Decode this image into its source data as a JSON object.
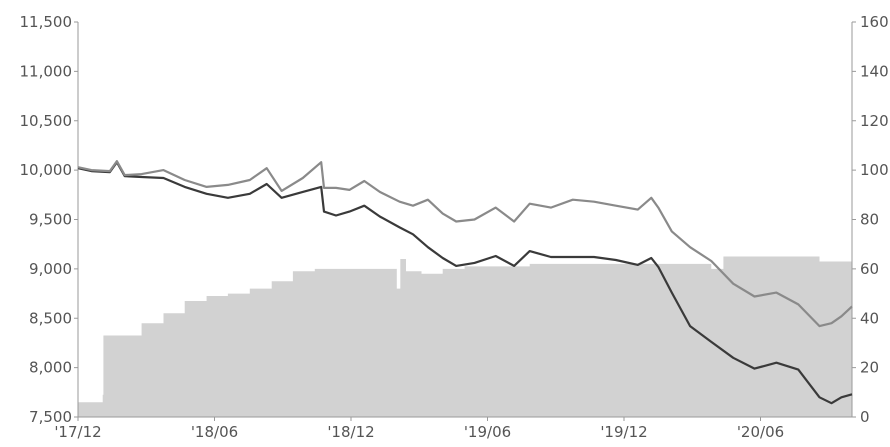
{
  "chart_data": {
    "type": "line",
    "x_tick_labels": [
      "'17/12",
      "'18/06",
      "'18/12",
      "'19/06",
      "'19/12",
      "'20/06"
    ],
    "y_left_tick_labels": [
      "11,500",
      "11,000",
      "10,500",
      "10,000",
      "9,500",
      "9,000",
      "8,500",
      "8,000",
      "7,500"
    ],
    "y_right_tick_labels": [
      "160",
      "140",
      "120",
      "100",
      "80",
      "60",
      "40",
      "20",
      "0"
    ],
    "y_left_range": [
      7500,
      11500
    ],
    "y_right_range": [
      0,
      160
    ],
    "x_range": [
      "2017-12-01",
      "2020-11-30"
    ],
    "grid": false,
    "colors": {
      "dark_line": "#3a3a3a",
      "light_line": "#8a8a8a",
      "area": "#d2d2d2",
      "axis": "#9a9a9a"
    },
    "series": [
      {
        "axis": "left",
        "style": "dark-line",
        "points": [
          [
            "2017-12-01",
            10020
          ],
          [
            "2017-12-20",
            9990
          ],
          [
            "2018-01-15",
            9980
          ],
          [
            "2018-01-25",
            10080
          ],
          [
            "2018-02-05",
            9940
          ],
          [
            "2018-03-01",
            9930
          ],
          [
            "2018-04-01",
            9920
          ],
          [
            "2018-05-01",
            9830
          ],
          [
            "2018-06-01",
            9760
          ],
          [
            "2018-07-01",
            9720
          ],
          [
            "2018-08-01",
            9760
          ],
          [
            "2018-08-25",
            9860
          ],
          [
            "2018-09-15",
            9720
          ],
          [
            "2018-10-15",
            9780
          ],
          [
            "2018-11-10",
            9830
          ],
          [
            "2018-11-14",
            9580
          ],
          [
            "2018-12-01",
            9540
          ],
          [
            "2018-12-20",
            9580
          ],
          [
            "2019-01-10",
            9640
          ],
          [
            "2019-02-01",
            9530
          ],
          [
            "2019-03-01",
            9420
          ],
          [
            "2019-03-20",
            9350
          ],
          [
            "2019-04-10",
            9220
          ],
          [
            "2019-05-01",
            9110
          ],
          [
            "2019-05-20",
            9030
          ],
          [
            "2019-06-15",
            9060
          ],
          [
            "2019-07-15",
            9130
          ],
          [
            "2019-08-10",
            9030
          ],
          [
            "2019-09-01",
            9180
          ],
          [
            "2019-10-01",
            9120
          ],
          [
            "2019-11-01",
            9120
          ],
          [
            "2019-12-01",
            9120
          ],
          [
            "2020-01-01",
            9090
          ],
          [
            "2020-02-01",
            9040
          ],
          [
            "2020-02-20",
            9110
          ],
          [
            "2020-03-01",
            9020
          ],
          [
            "2020-03-20",
            8760
          ],
          [
            "2020-04-15",
            8420
          ],
          [
            "2020-05-15",
            8260
          ],
          [
            "2020-06-15",
            8100
          ],
          [
            "2020-07-15",
            7990
          ],
          [
            "2020-08-15",
            8050
          ],
          [
            "2020-09-15",
            7980
          ],
          [
            "2020-10-15",
            7700
          ],
          [
            "2020-11-01",
            7640
          ],
          [
            "2020-11-15",
            7700
          ],
          [
            "2020-11-30",
            7730
          ]
        ]
      },
      {
        "axis": "left",
        "style": "light-line",
        "points": [
          [
            "2017-12-01",
            10030
          ],
          [
            "2017-12-20",
            10000
          ],
          [
            "2018-01-15",
            9990
          ],
          [
            "2018-01-25",
            10090
          ],
          [
            "2018-02-05",
            9950
          ],
          [
            "2018-03-01",
            9960
          ],
          [
            "2018-04-01",
            10000
          ],
          [
            "2018-05-01",
            9900
          ],
          [
            "2018-06-01",
            9830
          ],
          [
            "2018-07-01",
            9850
          ],
          [
            "2018-08-01",
            9900
          ],
          [
            "2018-08-25",
            10020
          ],
          [
            "2018-09-15",
            9790
          ],
          [
            "2018-10-15",
            9920
          ],
          [
            "2018-11-10",
            10080
          ],
          [
            "2018-11-14",
            9820
          ],
          [
            "2018-12-01",
            9820
          ],
          [
            "2018-12-20",
            9800
          ],
          [
            "2019-01-10",
            9890
          ],
          [
            "2019-02-01",
            9780
          ],
          [
            "2019-03-01",
            9680
          ],
          [
            "2019-03-20",
            9640
          ],
          [
            "2019-04-10",
            9700
          ],
          [
            "2019-05-01",
            9560
          ],
          [
            "2019-05-20",
            9480
          ],
          [
            "2019-06-15",
            9500
          ],
          [
            "2019-07-15",
            9620
          ],
          [
            "2019-08-10",
            9480
          ],
          [
            "2019-09-01",
            9660
          ],
          [
            "2019-10-01",
            9620
          ],
          [
            "2019-11-01",
            9700
          ],
          [
            "2019-12-01",
            9680
          ],
          [
            "2020-01-01",
            9640
          ],
          [
            "2020-02-01",
            9600
          ],
          [
            "2020-02-20",
            9720
          ],
          [
            "2020-03-01",
            9620
          ],
          [
            "2020-03-20",
            9380
          ],
          [
            "2020-04-15",
            9220
          ],
          [
            "2020-05-15",
            9080
          ],
          [
            "2020-06-15",
            8850
          ],
          [
            "2020-07-15",
            8720
          ],
          [
            "2020-08-15",
            8760
          ],
          [
            "2020-09-15",
            8640
          ],
          [
            "2020-10-15",
            8420
          ],
          [
            "2020-11-01",
            8450
          ],
          [
            "2020-11-15",
            8520
          ],
          [
            "2020-11-30",
            8620
          ]
        ]
      },
      {
        "axis": "right",
        "style": "area",
        "points": [
          [
            "2017-12-01",
            6
          ],
          [
            "2018-01-05",
            9
          ],
          [
            "2018-01-06",
            33
          ],
          [
            "2018-02-20",
            33
          ],
          [
            "2018-03-01",
            38
          ],
          [
            "2018-04-01",
            42
          ],
          [
            "2018-05-01",
            47
          ],
          [
            "2018-06-01",
            49
          ],
          [
            "2018-07-01",
            50
          ],
          [
            "2018-08-01",
            52
          ],
          [
            "2018-09-01",
            55
          ],
          [
            "2018-10-01",
            59
          ],
          [
            "2018-11-01",
            60
          ],
          [
            "2018-12-01",
            60
          ],
          [
            "2019-01-01",
            60
          ],
          [
            "2019-02-15",
            60
          ],
          [
            "2019-02-25",
            52
          ],
          [
            "2019-03-02",
            64
          ],
          [
            "2019-03-10",
            59
          ],
          [
            "2019-04-01",
            58
          ],
          [
            "2019-05-01",
            60
          ],
          [
            "2019-06-01",
            61
          ],
          [
            "2019-07-01",
            61
          ],
          [
            "2019-09-01",
            62
          ],
          [
            "2019-12-01",
            62
          ],
          [
            "2020-03-01",
            62
          ],
          [
            "2020-05-15",
            60
          ],
          [
            "2020-06-01",
            65
          ],
          [
            "2020-07-01",
            65
          ],
          [
            "2020-09-01",
            65
          ],
          [
            "2020-10-15",
            63
          ],
          [
            "2020-11-30",
            62
          ]
        ]
      }
    ]
  }
}
